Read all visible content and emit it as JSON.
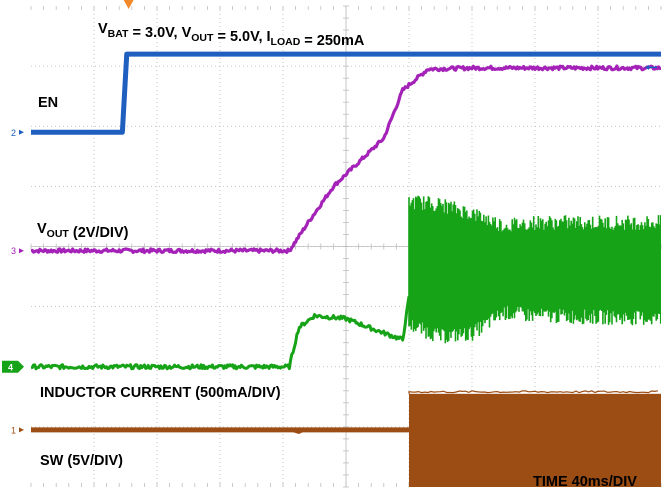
{
  "chart_data": {
    "type": "line",
    "title": {
      "parts": [
        {
          "t": "V"
        },
        {
          "t": "BAT",
          "sub": true
        },
        {
          "t": " = 3.0V, V"
        },
        {
          "t": "OUT",
          "sub": true
        },
        {
          "t": " = 5.0V, I"
        },
        {
          "t": "LOAD",
          "sub": true
        },
        {
          "t": " = 250mA"
        }
      ]
    },
    "time_label": "TIME 40ms/DIV",
    "x_divisions": 10,
    "y_divisions": 8,
    "trigger_position_div": 1.55,
    "series": [
      {
        "id": "en",
        "name": "EN",
        "marker": "2",
        "color": "#1f5fbf",
        "low_div": 5.9,
        "high_div": 7.2,
        "rise_time_div": 1.5,
        "points_div": [
          [
            0,
            5.9
          ],
          [
            1.45,
            5.9
          ],
          [
            1.52,
            7.2
          ],
          [
            10,
            7.2
          ]
        ]
      },
      {
        "id": "vout",
        "name": "V",
        "name_sub": "OUT",
        "name_suffix": " (2V/DIV)",
        "marker": "3",
        "color": "#a422b8",
        "scale": "2V/DIV",
        "points_div": [
          [
            0,
            3.93
          ],
          [
            4.1,
            3.93
          ],
          [
            4.4,
            4.4
          ],
          [
            4.8,
            5.0
          ],
          [
            5.2,
            5.4
          ],
          [
            5.6,
            5.8
          ],
          [
            5.9,
            6.6
          ],
          [
            6.3,
            6.95
          ],
          [
            7,
            6.97
          ],
          [
            10,
            6.97
          ]
        ]
      },
      {
        "id": "il",
        "name": "INDUCTOR CURRENT (500mA/DIV)",
        "marker": "4",
        "color": "#17a317",
        "scale": "500mA/DIV",
        "points_div": [
          [
            0,
            2.0
          ],
          [
            4.1,
            2.0
          ],
          [
            4.25,
            2.65
          ],
          [
            4.5,
            2.85
          ],
          [
            5.0,
            2.8
          ],
          [
            5.5,
            2.6
          ],
          [
            5.9,
            2.45
          ],
          [
            6.0,
            3.15
          ]
        ],
        "ripple_start_div": 6.0,
        "ripple_band_div": [
          [
            6.0,
            2.7,
            4.75
          ],
          [
            6.5,
            2.5,
            4.7
          ],
          [
            7.0,
            2.55,
            4.55
          ],
          [
            7.5,
            2.9,
            4.35
          ],
          [
            8.0,
            2.85,
            4.4
          ],
          [
            10,
            2.8,
            4.4
          ]
        ]
      },
      {
        "id": "sw",
        "name": "SW (5V/DIV)",
        "marker": "1",
        "color": "#9b4d14",
        "scale": "5V/DIV",
        "low_div": 0.95,
        "step_div": 6.0,
        "high_div": 1.55,
        "points_div": [
          [
            0,
            0.95
          ],
          [
            6.0,
            0.95
          ],
          [
            6.0,
            1.55
          ],
          [
            10,
            1.55
          ]
        ]
      }
    ]
  }
}
